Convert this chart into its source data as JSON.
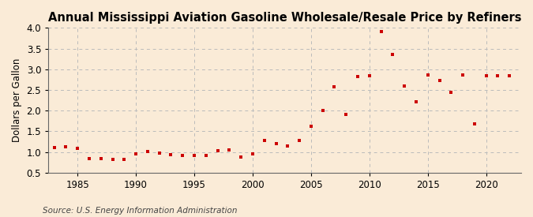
{
  "title": "Annual Mississippi Aviation Gasoline Wholesale/Resale Price by Refiners",
  "ylabel": "Dollars per Gallon",
  "source": "Source: U.S. Energy Information Administration",
  "background_color": "#faebd7",
  "marker_color": "#cc0000",
  "years": [
    1983,
    1984,
    1985,
    1986,
    1987,
    1988,
    1989,
    1990,
    1991,
    1992,
    1993,
    1994,
    1995,
    1996,
    1997,
    1998,
    1999,
    2000,
    2001,
    2002,
    2003,
    2004,
    2005,
    2006,
    2007,
    2008,
    2009,
    2010,
    2011,
    2012,
    2013,
    2014,
    2015,
    2016,
    2017,
    2018,
    2019,
    2020,
    2021,
    2022
  ],
  "values": [
    1.1,
    1.13,
    1.09,
    0.84,
    0.83,
    0.82,
    0.82,
    0.95,
    1.01,
    0.98,
    0.93,
    0.91,
    0.91,
    0.92,
    1.02,
    1.04,
    0.87,
    0.96,
    1.27,
    1.21,
    1.14,
    1.27,
    1.62,
    2.01,
    2.57,
    1.91,
    2.83,
    2.84,
    3.91,
    3.36,
    2.6,
    2.22,
    2.87,
    2.72,
    2.45,
    2.87,
    1.67,
    2.84,
    2.85,
    2.85
  ],
  "ylim": [
    0.5,
    4.0
  ],
  "yticks": [
    0.5,
    1.0,
    1.5,
    2.0,
    2.5,
    3.0,
    3.5,
    4.0
  ],
  "xlim": [
    1982.5,
    2023
  ],
  "xticks": [
    1985,
    1990,
    1995,
    2000,
    2005,
    2010,
    2015,
    2020
  ],
  "grid_color": "#bbbbbb",
  "title_fontsize": 10.5,
  "label_fontsize": 8.5,
  "tick_fontsize": 8.5,
  "source_fontsize": 7.5
}
